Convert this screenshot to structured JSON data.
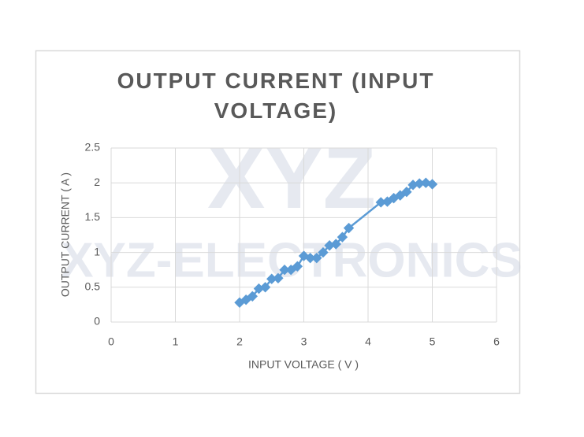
{
  "chart_data": {
    "type": "scatter-line",
    "title": "OUTPUT CURRENT (INPUT VOLTAGE)",
    "x_label": "INPUT VOLTAGE ( V )",
    "y_label": "OUTPUT CURRENT ( A )",
    "watermark": [
      "XYZ",
      "XYZ-ELECTRONICS"
    ],
    "x": [
      2.0,
      2.1,
      2.2,
      2.3,
      2.4,
      2.5,
      2.6,
      2.7,
      2.8,
      2.9,
      3.0,
      3.1,
      3.2,
      3.3,
      3.4,
      3.5,
      3.6,
      3.7,
      4.2,
      4.3,
      4.4,
      4.5,
      4.6,
      4.7,
      4.8,
      4.9,
      5.0
    ],
    "series": [
      {
        "name": "OUTPUT CURRENT",
        "color": "#5b9bd5",
        "values": [
          0.28,
          0.32,
          0.37,
          0.48,
          0.5,
          0.62,
          0.63,
          0.75,
          0.75,
          0.8,
          0.95,
          0.92,
          0.92,
          1.0,
          1.1,
          1.12,
          1.22,
          1.35,
          1.72,
          1.73,
          1.78,
          1.82,
          1.87,
          1.97,
          1.99,
          2.0,
          1.98
        ]
      }
    ],
    "xlim": [
      0,
      6
    ],
    "xticks": [
      0,
      1,
      2,
      3,
      4,
      5,
      6
    ],
    "ylim": [
      0,
      2.5
    ],
    "yticks": [
      0,
      0.5,
      1,
      1.5,
      2,
      2.5
    ],
    "grid": true
  }
}
